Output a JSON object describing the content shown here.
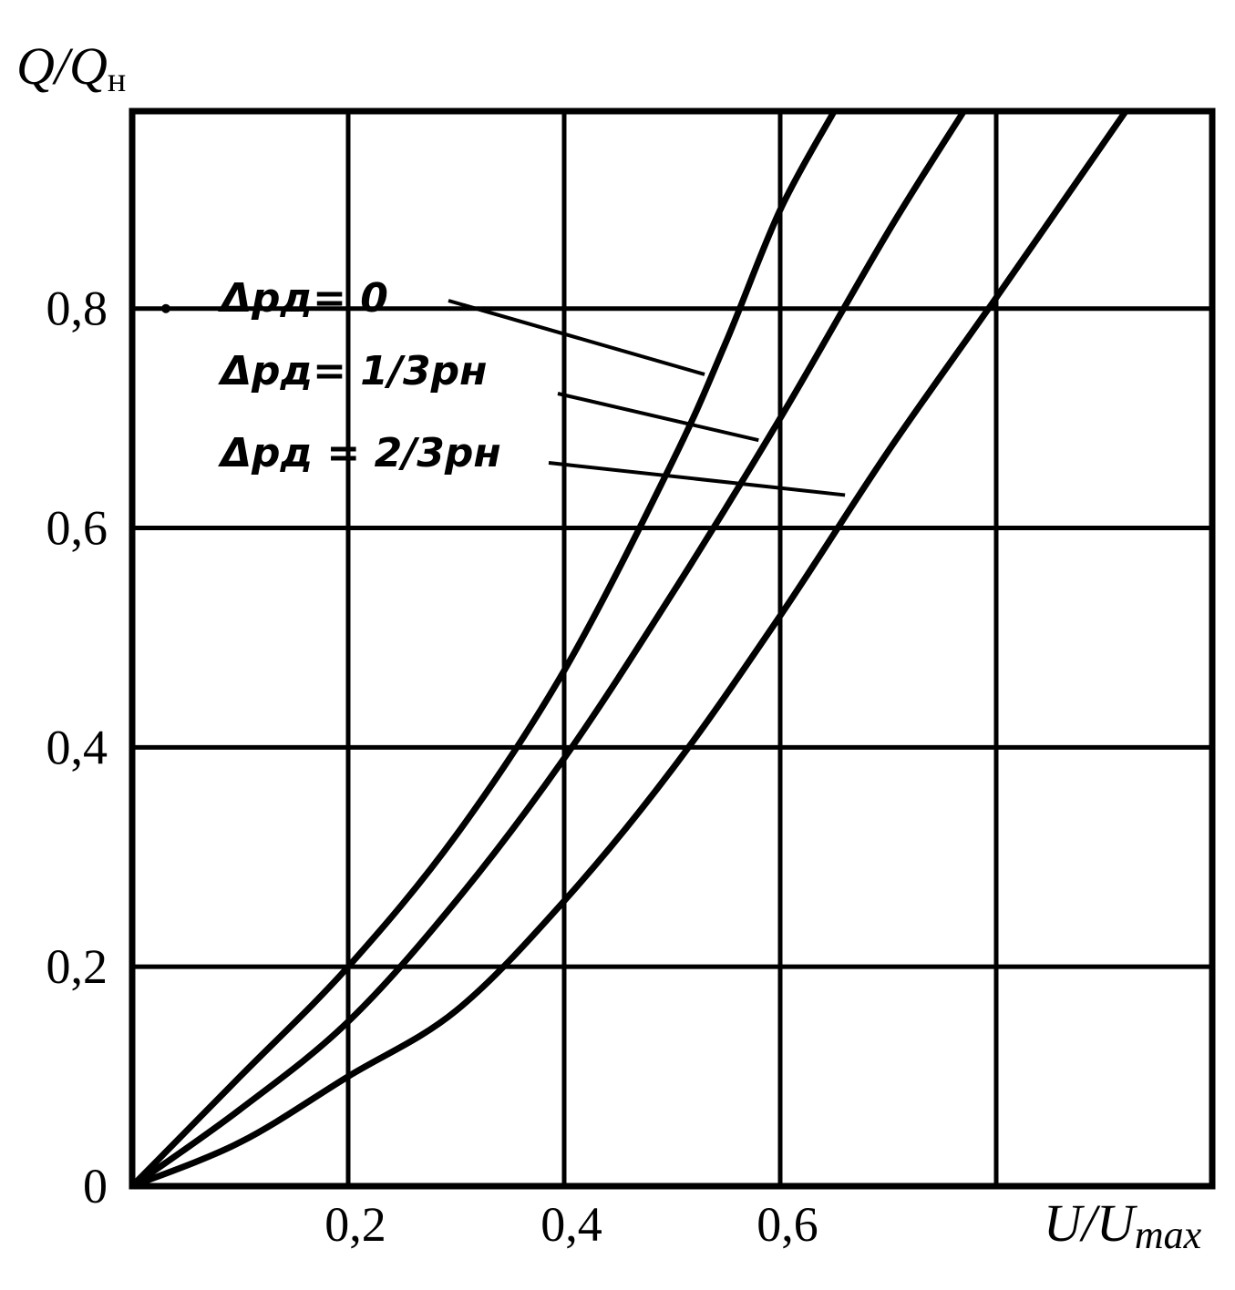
{
  "chart_data": {
    "type": "line",
    "xlabel": {
      "main": "U/U",
      "sub": "max"
    },
    "ylabel": {
      "main": "Q/Q",
      "sub": "н"
    },
    "xlim": [
      0,
      1.0
    ],
    "ylim": [
      0,
      0.98
    ],
    "grid": true,
    "x_ticks": [
      {
        "value": 0.2,
        "label": "0,2"
      },
      {
        "value": 0.4,
        "label": "0,4"
      },
      {
        "value": 0.6,
        "label": "0,6"
      }
    ],
    "x_gridlines": [
      0.2,
      0.4,
      0.6,
      0.8
    ],
    "y_ticks": [
      {
        "value": 0,
        "label": "0"
      },
      {
        "value": 0.2,
        "label": "0,2"
      },
      {
        "value": 0.4,
        "label": "0,4"
      },
      {
        "value": 0.6,
        "label": "0,6"
      },
      {
        "value": 0.8,
        "label": "0,8"
      }
    ],
    "y_gridlines": [
      0.2,
      0.4,
      0.6,
      0.8
    ],
    "series": [
      {
        "name": "Δpд = 0",
        "x": [
          0,
          0.1,
          0.2,
          0.3,
          0.4,
          0.5,
          0.55,
          0.6,
          0.65
        ],
        "y": [
          0,
          0.1,
          0.2,
          0.32,
          0.47,
          0.66,
          0.77,
          0.89,
          0.98
        ]
      },
      {
        "name": "Δpд = 1/3pн",
        "x": [
          0,
          0.1,
          0.2,
          0.3,
          0.4,
          0.5,
          0.6,
          0.7,
          0.77
        ],
        "y": [
          0,
          0.07,
          0.15,
          0.26,
          0.39,
          0.54,
          0.7,
          0.87,
          0.98
        ]
      },
      {
        "name": "Δpд = 2/3pн",
        "x": [
          0,
          0.1,
          0.2,
          0.3,
          0.4,
          0.5,
          0.6,
          0.7,
          0.8,
          0.92
        ],
        "y": [
          0,
          0.04,
          0.1,
          0.16,
          0.26,
          0.38,
          0.52,
          0.67,
          0.81,
          0.98
        ]
      }
    ],
    "annotations": [
      {
        "label": "Δpд= 0",
        "points_to_series": 0,
        "tip": [
          0.53,
          0.74
        ]
      },
      {
        "label": "Δpд= 1/3pн",
        "points_to_series": 1,
        "tip": [
          0.58,
          0.68
        ]
      },
      {
        "label": "Δpд = 2/3pн",
        "points_to_series": 2,
        "tip": [
          0.66,
          0.63
        ]
      }
    ]
  }
}
